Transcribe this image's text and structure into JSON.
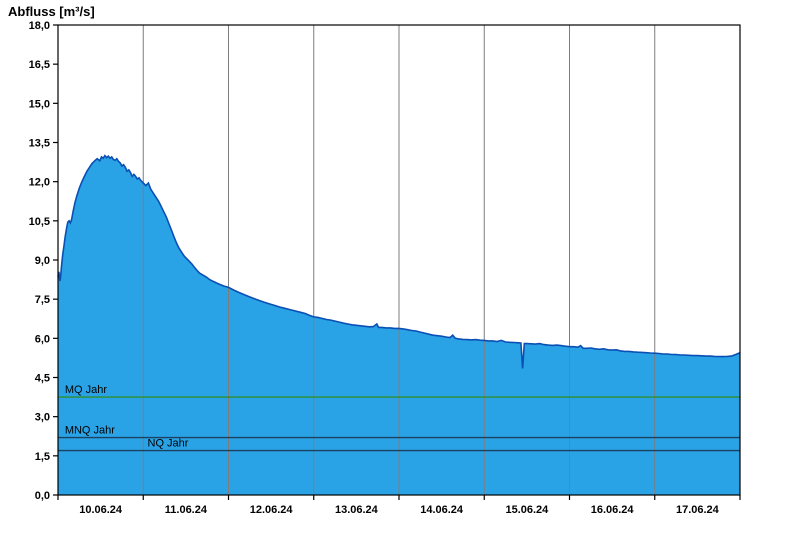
{
  "title": "Abfluss [m³/s]",
  "chart_data": {
    "type": "area",
    "title": "Abfluss [m³/s]",
    "ylabel": "Abfluss [m³/s]",
    "ylim": [
      0,
      18
    ],
    "x_domain_days": [
      0,
      8
    ],
    "grid": "vertical-only",
    "legend_position": "none",
    "y_ticks": [
      {
        "value": 0.0,
        "label": "0,0"
      },
      {
        "value": 1.5,
        "label": "1,5"
      },
      {
        "value": 3.0,
        "label": "3,0"
      },
      {
        "value": 4.5,
        "label": "4,5"
      },
      {
        "value": 6.0,
        "label": "6,0"
      },
      {
        "value": 7.5,
        "label": "7,5"
      },
      {
        "value": 9.0,
        "label": "9,0"
      },
      {
        "value": 10.5,
        "label": "10,5"
      },
      {
        "value": 12.0,
        "label": "12,0"
      },
      {
        "value": 13.5,
        "label": "13,5"
      },
      {
        "value": 15.0,
        "label": "15,0"
      },
      {
        "value": 16.5,
        "label": "16,5"
      },
      {
        "value": 18.0,
        "label": "18,0"
      }
    ],
    "x_days": [
      "10.06.24",
      "11.06.24",
      "12.06.24",
      "13.06.24",
      "14.06.24",
      "15.06.24",
      "16.06.24",
      "17.06.24"
    ],
    "colors": {
      "area_fill": "#29a3e6",
      "area_line": "#0a4fb4",
      "grid": "#7d7d7d",
      "axis": "#000000",
      "mq": "#2f8f2f",
      "mnq": "#1d4060",
      "nq": "#1d4060"
    },
    "reference_lines": [
      {
        "name": "mq-line",
        "label": "MQ Jahr",
        "value": 3.75,
        "color_key": "mq",
        "label_day": 0.08
      },
      {
        "name": "mnq-line",
        "label": "MNQ Jahr",
        "value": 2.2,
        "color_key": "mnq",
        "label_day": 0.08
      },
      {
        "name": "nq-line",
        "label": "NQ Jahr",
        "value": 1.7,
        "color_key": "nq",
        "label_day": 1.05
      }
    ],
    "series": [
      {
        "name": "Abfluss",
        "unit": "m³/s",
        "points": [
          [
            0.0,
            8.35
          ],
          [
            0.01,
            8.55
          ],
          [
            0.018,
            8.3
          ],
          [
            0.025,
            8.2
          ],
          [
            0.033,
            8.45
          ],
          [
            0.042,
            8.8
          ],
          [
            0.055,
            9.2
          ],
          [
            0.07,
            9.55
          ],
          [
            0.085,
            9.9
          ],
          [
            0.1,
            10.2
          ],
          [
            0.115,
            10.45
          ],
          [
            0.13,
            10.5
          ],
          [
            0.145,
            10.42
          ],
          [
            0.16,
            10.55
          ],
          [
            0.18,
            10.9
          ],
          [
            0.2,
            11.2
          ],
          [
            0.22,
            11.45
          ],
          [
            0.25,
            11.75
          ],
          [
            0.28,
            12.0
          ],
          [
            0.31,
            12.2
          ],
          [
            0.34,
            12.4
          ],
          [
            0.37,
            12.55
          ],
          [
            0.4,
            12.7
          ],
          [
            0.43,
            12.8
          ],
          [
            0.46,
            12.88
          ],
          [
            0.49,
            12.8
          ],
          [
            0.51,
            12.95
          ],
          [
            0.53,
            12.9
          ],
          [
            0.55,
            13.0
          ],
          [
            0.57,
            12.92
          ],
          [
            0.59,
            12.98
          ],
          [
            0.61,
            12.9
          ],
          [
            0.63,
            12.95
          ],
          [
            0.65,
            12.85
          ],
          [
            0.67,
            12.82
          ],
          [
            0.69,
            12.88
          ],
          [
            0.71,
            12.78
          ],
          [
            0.73,
            12.72
          ],
          [
            0.75,
            12.6
          ],
          [
            0.77,
            12.65
          ],
          [
            0.79,
            12.55
          ],
          [
            0.81,
            12.4
          ],
          [
            0.83,
            12.45
          ],
          [
            0.85,
            12.35
          ],
          [
            0.87,
            12.2
          ],
          [
            0.89,
            12.28
          ],
          [
            0.91,
            12.2
          ],
          [
            0.93,
            12.1
          ],
          [
            0.95,
            12.15
          ],
          [
            0.97,
            12.05
          ],
          [
            1.0,
            11.95
          ],
          [
            1.03,
            11.85
          ],
          [
            1.06,
            11.95
          ],
          [
            1.09,
            11.7
          ],
          [
            1.12,
            11.55
          ],
          [
            1.15,
            11.4
          ],
          [
            1.18,
            11.25
          ],
          [
            1.21,
            11.05
          ],
          [
            1.24,
            10.85
          ],
          [
            1.27,
            10.65
          ],
          [
            1.3,
            10.4
          ],
          [
            1.33,
            10.15
          ],
          [
            1.36,
            9.9
          ],
          [
            1.39,
            9.65
          ],
          [
            1.42,
            9.45
          ],
          [
            1.45,
            9.3
          ],
          [
            1.48,
            9.15
          ],
          [
            1.51,
            9.05
          ],
          [
            1.54,
            8.95
          ],
          [
            1.57,
            8.85
          ],
          [
            1.6,
            8.72
          ],
          [
            1.63,
            8.6
          ],
          [
            1.66,
            8.5
          ],
          [
            1.7,
            8.42
          ],
          [
            1.74,
            8.35
          ],
          [
            1.78,
            8.25
          ],
          [
            1.82,
            8.18
          ],
          [
            1.86,
            8.12
          ],
          [
            1.9,
            8.06
          ],
          [
            1.95,
            8.0
          ],
          [
            2.0,
            7.95
          ],
          [
            2.06,
            7.85
          ],
          [
            2.12,
            7.76
          ],
          [
            2.18,
            7.68
          ],
          [
            2.24,
            7.6
          ],
          [
            2.3,
            7.52
          ],
          [
            2.36,
            7.45
          ],
          [
            2.42,
            7.38
          ],
          [
            2.48,
            7.32
          ],
          [
            2.54,
            7.26
          ],
          [
            2.6,
            7.2
          ],
          [
            2.66,
            7.15
          ],
          [
            2.72,
            7.1
          ],
          [
            2.78,
            7.05
          ],
          [
            2.84,
            7.0
          ],
          [
            2.9,
            6.95
          ],
          [
            2.95,
            6.88
          ],
          [
            3.0,
            6.82
          ],
          [
            3.05,
            6.8
          ],
          [
            3.1,
            6.76
          ],
          [
            3.15,
            6.72
          ],
          [
            3.2,
            6.7
          ],
          [
            3.25,
            6.66
          ],
          [
            3.3,
            6.62
          ],
          [
            3.35,
            6.58
          ],
          [
            3.4,
            6.55
          ],
          [
            3.45,
            6.52
          ],
          [
            3.5,
            6.5
          ],
          [
            3.55,
            6.48
          ],
          [
            3.6,
            6.46
          ],
          [
            3.65,
            6.44
          ],
          [
            3.7,
            6.45
          ],
          [
            3.74,
            6.55
          ],
          [
            3.76,
            6.42
          ],
          [
            3.8,
            6.42
          ],
          [
            3.85,
            6.4
          ],
          [
            3.9,
            6.4
          ],
          [
            3.95,
            6.38
          ],
          [
            4.0,
            6.38
          ],
          [
            4.05,
            6.36
          ],
          [
            4.1,
            6.33
          ],
          [
            4.15,
            6.3
          ],
          [
            4.2,
            6.28
          ],
          [
            4.25,
            6.24
          ],
          [
            4.3,
            6.2
          ],
          [
            4.35,
            6.16
          ],
          [
            4.4,
            6.12
          ],
          [
            4.45,
            6.1
          ],
          [
            4.5,
            6.08
          ],
          [
            4.55,
            6.05
          ],
          [
            4.6,
            6.03
          ],
          [
            4.63,
            6.12
          ],
          [
            4.66,
            6.0
          ],
          [
            4.7,
            5.98
          ],
          [
            4.75,
            5.96
          ],
          [
            4.8,
            5.95
          ],
          [
            4.85,
            5.94
          ],
          [
            4.9,
            5.95
          ],
          [
            4.95,
            5.93
          ],
          [
            5.0,
            5.92
          ],
          [
            5.05,
            5.9
          ],
          [
            5.1,
            5.9
          ],
          [
            5.15,
            5.88
          ],
          [
            5.2,
            5.92
          ],
          [
            5.25,
            5.86
          ],
          [
            5.3,
            5.85
          ],
          [
            5.35,
            5.84
          ],
          [
            5.4,
            5.83
          ],
          [
            5.43,
            5.82
          ],
          [
            5.45,
            4.85
          ],
          [
            5.47,
            5.8
          ],
          [
            5.5,
            5.8
          ],
          [
            5.55,
            5.79
          ],
          [
            5.6,
            5.78
          ],
          [
            5.65,
            5.8
          ],
          [
            5.7,
            5.76
          ],
          [
            5.75,
            5.74
          ],
          [
            5.8,
            5.73
          ],
          [
            5.85,
            5.74
          ],
          [
            5.9,
            5.72
          ],
          [
            5.95,
            5.7
          ],
          [
            6.0,
            5.68
          ],
          [
            6.05,
            5.68
          ],
          [
            6.1,
            5.66
          ],
          [
            6.13,
            5.72
          ],
          [
            6.16,
            5.62
          ],
          [
            6.2,
            5.62
          ],
          [
            6.25,
            5.63
          ],
          [
            6.3,
            5.6
          ],
          [
            6.35,
            5.58
          ],
          [
            6.4,
            5.6
          ],
          [
            6.45,
            5.56
          ],
          [
            6.5,
            5.55
          ],
          [
            6.55,
            5.56
          ],
          [
            6.6,
            5.52
          ],
          [
            6.65,
            5.5
          ],
          [
            6.7,
            5.5
          ],
          [
            6.75,
            5.48
          ],
          [
            6.8,
            5.47
          ],
          [
            6.85,
            5.46
          ],
          [
            6.9,
            5.45
          ],
          [
            6.95,
            5.44
          ],
          [
            7.0,
            5.43
          ],
          [
            7.05,
            5.42
          ],
          [
            7.1,
            5.4
          ],
          [
            7.15,
            5.4
          ],
          [
            7.2,
            5.38
          ],
          [
            7.25,
            5.38
          ],
          [
            7.3,
            5.36
          ],
          [
            7.35,
            5.36
          ],
          [
            7.4,
            5.35
          ],
          [
            7.45,
            5.34
          ],
          [
            7.5,
            5.34
          ],
          [
            7.55,
            5.33
          ],
          [
            7.6,
            5.32
          ],
          [
            7.65,
            5.32
          ],
          [
            7.7,
            5.31
          ],
          [
            7.75,
            5.3
          ],
          [
            7.8,
            5.3
          ],
          [
            7.85,
            5.31
          ],
          [
            7.9,
            5.32
          ],
          [
            7.95,
            5.38
          ],
          [
            8.0,
            5.45
          ]
        ]
      }
    ]
  }
}
